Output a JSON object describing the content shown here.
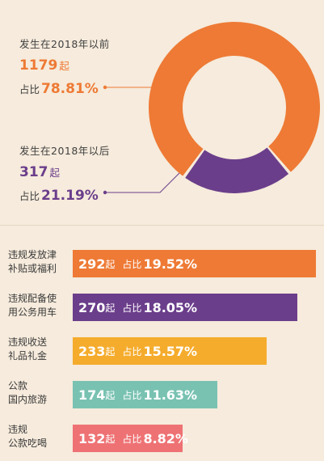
{
  "chart_data": [
    {
      "type": "pie",
      "title": "",
      "unit": "起",
      "share_label": "占比",
      "slices": [
        {
          "label": "发生在2018年以前",
          "value": 1179,
          "percent": "78.81%",
          "color": "#ee7a35"
        },
        {
          "label": "发生在2018年以后",
          "value": 317,
          "percent": "21.19%",
          "color": "#6b3e8b"
        }
      ]
    },
    {
      "type": "bar",
      "orientation": "horizontal",
      "title": "",
      "unit": "起",
      "share_label": "占比",
      "categories": [
        [
          "违规发放津",
          "补贴或福利"
        ],
        [
          "违规配备使",
          "用公务用车"
        ],
        [
          "违规收送",
          "礼品礼金"
        ],
        [
          "公款",
          "国内旅游"
        ],
        [
          "违规",
          "公款吃喝"
        ]
      ],
      "values": [
        292,
        270,
        233,
        174,
        132
      ],
      "percents": [
        "19.52%",
        "18.05%",
        "15.57%",
        "11.63%",
        "8.82%"
      ],
      "colors": [
        "#ee7a35",
        "#6b3e8b",
        "#f5ac2c",
        "#79c2b2",
        "#ee7274"
      ],
      "xlim": [
        0,
        292
      ]
    }
  ]
}
